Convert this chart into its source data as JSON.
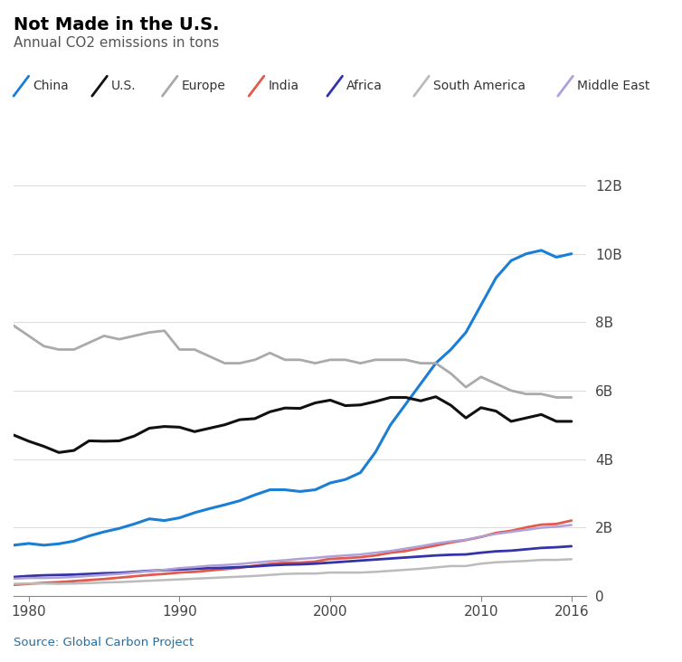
{
  "title": "Not Made in the U.S.",
  "subtitle": "Annual CO2 emissions in tons",
  "source": "Source: Global Carbon Project",
  "title_color": "#000000",
  "subtitle_color": "#555555",
  "source_color": "#1a6faf",
  "background_color": "#ffffff",
  "xlim": [
    1979,
    2017
  ],
  "ylim": [
    0,
    12000000000
  ],
  "yticks": [
    0,
    2000000000,
    4000000000,
    6000000000,
    8000000000,
    10000000000,
    12000000000
  ],
  "ytick_labels": [
    "0",
    "2B",
    "4B",
    "6B",
    "8B",
    "10B",
    "12B"
  ],
  "xticks": [
    1980,
    1990,
    2000,
    2010,
    2016
  ],
  "series": {
    "China": {
      "color": "#1a7fd4",
      "linewidth": 2.2,
      "years": [
        1979,
        1980,
        1981,
        1982,
        1983,
        1984,
        1985,
        1986,
        1987,
        1988,
        1989,
        1990,
        1991,
        1992,
        1993,
        1994,
        1995,
        1996,
        1997,
        1998,
        1999,
        2000,
        2001,
        2002,
        2003,
        2004,
        2005,
        2006,
        2007,
        2008,
        2009,
        2010,
        2011,
        2012,
        2013,
        2014,
        2015,
        2016
      ],
      "values": [
        1480000000,
        1530000000,
        1480000000,
        1520000000,
        1600000000,
        1750000000,
        1870000000,
        1970000000,
        2100000000,
        2250000000,
        2200000000,
        2280000000,
        2430000000,
        2550000000,
        2660000000,
        2780000000,
        2950000000,
        3100000000,
        3100000000,
        3050000000,
        3100000000,
        3300000000,
        3400000000,
        3600000000,
        4200000000,
        5000000000,
        5600000000,
        6200000000,
        6800000000,
        7200000000,
        7700000000,
        8500000000,
        9300000000,
        9800000000,
        10000000000,
        10100000000,
        9900000000,
        10000000000
      ]
    },
    "U.S.": {
      "color": "#111111",
      "linewidth": 2.2,
      "years": [
        1979,
        1980,
        1981,
        1982,
        1983,
        1984,
        1985,
        1986,
        1987,
        1988,
        1989,
        1990,
        1991,
        1992,
        1993,
        1994,
        1995,
        1996,
        1997,
        1998,
        1999,
        2000,
        2001,
        2002,
        2003,
        2004,
        2005,
        2006,
        2007,
        2008,
        2009,
        2010,
        2011,
        2012,
        2013,
        2014,
        2015,
        2016
      ],
      "values": [
        4700000000,
        4520000000,
        4370000000,
        4190000000,
        4250000000,
        4530000000,
        4520000000,
        4530000000,
        4670000000,
        4900000000,
        4950000000,
        4930000000,
        4800000000,
        4900000000,
        5000000000,
        5150000000,
        5180000000,
        5380000000,
        5490000000,
        5480000000,
        5640000000,
        5720000000,
        5560000000,
        5580000000,
        5680000000,
        5800000000,
        5800000000,
        5700000000,
        5820000000,
        5570000000,
        5200000000,
        5500000000,
        5400000000,
        5100000000,
        5200000000,
        5300000000,
        5100000000,
        5100000000
      ]
    },
    "Europe": {
      "color": "#aaaaaa",
      "linewidth": 2.0,
      "years": [
        1979,
        1980,
        1981,
        1982,
        1983,
        1984,
        1985,
        1986,
        1987,
        1988,
        1989,
        1990,
        1991,
        1992,
        1993,
        1994,
        1995,
        1996,
        1997,
        1998,
        1999,
        2000,
        2001,
        2002,
        2003,
        2004,
        2005,
        2006,
        2007,
        2008,
        2009,
        2010,
        2011,
        2012,
        2013,
        2014,
        2015,
        2016
      ],
      "values": [
        7900000000,
        7600000000,
        7300000000,
        7200000000,
        7200000000,
        7400000000,
        7600000000,
        7500000000,
        7600000000,
        7700000000,
        7750000000,
        7200000000,
        7200000000,
        7000000000,
        6800000000,
        6800000000,
        6900000000,
        7100000000,
        6900000000,
        6900000000,
        6800000000,
        6900000000,
        6900000000,
        6800000000,
        6900000000,
        6900000000,
        6900000000,
        6800000000,
        6800000000,
        6500000000,
        6100000000,
        6400000000,
        6200000000,
        6000000000,
        5900000000,
        5900000000,
        5800000000,
        5800000000
      ]
    },
    "India": {
      "color": "#e05a4e",
      "linewidth": 2.0,
      "years": [
        1979,
        1980,
        1981,
        1982,
        1983,
        1984,
        1985,
        1986,
        1987,
        1988,
        1989,
        1990,
        1991,
        1992,
        1993,
        1994,
        1995,
        1996,
        1997,
        1998,
        1999,
        2000,
        2001,
        2002,
        2003,
        2004,
        2005,
        2006,
        2007,
        2008,
        2009,
        2010,
        2011,
        2012,
        2013,
        2014,
        2015,
        2016
      ],
      "values": [
        320000000,
        350000000,
        380000000,
        400000000,
        430000000,
        460000000,
        490000000,
        530000000,
        570000000,
        610000000,
        640000000,
        680000000,
        700000000,
        740000000,
        780000000,
        820000000,
        880000000,
        930000000,
        970000000,
        970000000,
        1000000000,
        1080000000,
        1100000000,
        1130000000,
        1180000000,
        1260000000,
        1310000000,
        1390000000,
        1470000000,
        1560000000,
        1630000000,
        1720000000,
        1840000000,
        1900000000,
        2000000000,
        2080000000,
        2100000000,
        2200000000
      ]
    },
    "Africa": {
      "color": "#3333aa",
      "linewidth": 2.0,
      "years": [
        1979,
        1980,
        1981,
        1982,
        1983,
        1984,
        1985,
        1986,
        1987,
        1988,
        1989,
        1990,
        1991,
        1992,
        1993,
        1994,
        1995,
        1996,
        1997,
        1998,
        1999,
        2000,
        2001,
        2002,
        2003,
        2004,
        2005,
        2006,
        2007,
        2008,
        2009,
        2010,
        2011,
        2012,
        2013,
        2014,
        2015,
        2016
      ],
      "values": [
        550000000,
        580000000,
        600000000,
        610000000,
        620000000,
        640000000,
        660000000,
        670000000,
        700000000,
        730000000,
        750000000,
        770000000,
        790000000,
        810000000,
        820000000,
        840000000,
        860000000,
        890000000,
        910000000,
        920000000,
        940000000,
        970000000,
        1000000000,
        1030000000,
        1060000000,
        1090000000,
        1120000000,
        1150000000,
        1180000000,
        1200000000,
        1210000000,
        1260000000,
        1300000000,
        1320000000,
        1360000000,
        1400000000,
        1420000000,
        1450000000
      ]
    },
    "South America": {
      "color": "#bbbbbb",
      "linewidth": 1.8,
      "years": [
        1979,
        1980,
        1981,
        1982,
        1983,
        1984,
        1985,
        1986,
        1987,
        1988,
        1989,
        1990,
        1991,
        1992,
        1993,
        1994,
        1995,
        1996,
        1997,
        1998,
        1999,
        2000,
        2001,
        2002,
        2003,
        2004,
        2005,
        2006,
        2007,
        2008,
        2009,
        2010,
        2011,
        2012,
        2013,
        2014,
        2015,
        2016
      ],
      "values": [
        350000000,
        360000000,
        360000000,
        350000000,
        360000000,
        370000000,
        390000000,
        400000000,
        420000000,
        440000000,
        460000000,
        480000000,
        500000000,
        520000000,
        540000000,
        560000000,
        580000000,
        610000000,
        640000000,
        650000000,
        650000000,
        680000000,
        680000000,
        680000000,
        700000000,
        730000000,
        760000000,
        790000000,
        830000000,
        870000000,
        870000000,
        940000000,
        980000000,
        1000000000,
        1020000000,
        1050000000,
        1050000000,
        1070000000
      ]
    },
    "Middle East": {
      "color": "#b0a0d8",
      "linewidth": 1.8,
      "years": [
        1979,
        1980,
        1981,
        1982,
        1983,
        1984,
        1985,
        1986,
        1987,
        1988,
        1989,
        1990,
        1991,
        1992,
        1993,
        1994,
        1995,
        1996,
        1997,
        1998,
        1999,
        2000,
        2001,
        2002,
        2003,
        2004,
        2005,
        2006,
        2007,
        2008,
        2009,
        2010,
        2011,
        2012,
        2013,
        2014,
        2015,
        2016
      ],
      "values": [
        500000000,
        520000000,
        520000000,
        530000000,
        550000000,
        580000000,
        610000000,
        640000000,
        680000000,
        720000000,
        760000000,
        810000000,
        840000000,
        880000000,
        900000000,
        930000000,
        970000000,
        1010000000,
        1040000000,
        1080000000,
        1110000000,
        1150000000,
        1180000000,
        1210000000,
        1260000000,
        1310000000,
        1380000000,
        1450000000,
        1530000000,
        1590000000,
        1640000000,
        1730000000,
        1810000000,
        1870000000,
        1930000000,
        1990000000,
        2020000000,
        2070000000
      ]
    }
  },
  "legend_order": [
    "China",
    "U.S.",
    "Europe",
    "India",
    "Africa",
    "South America",
    "Middle East"
  ]
}
